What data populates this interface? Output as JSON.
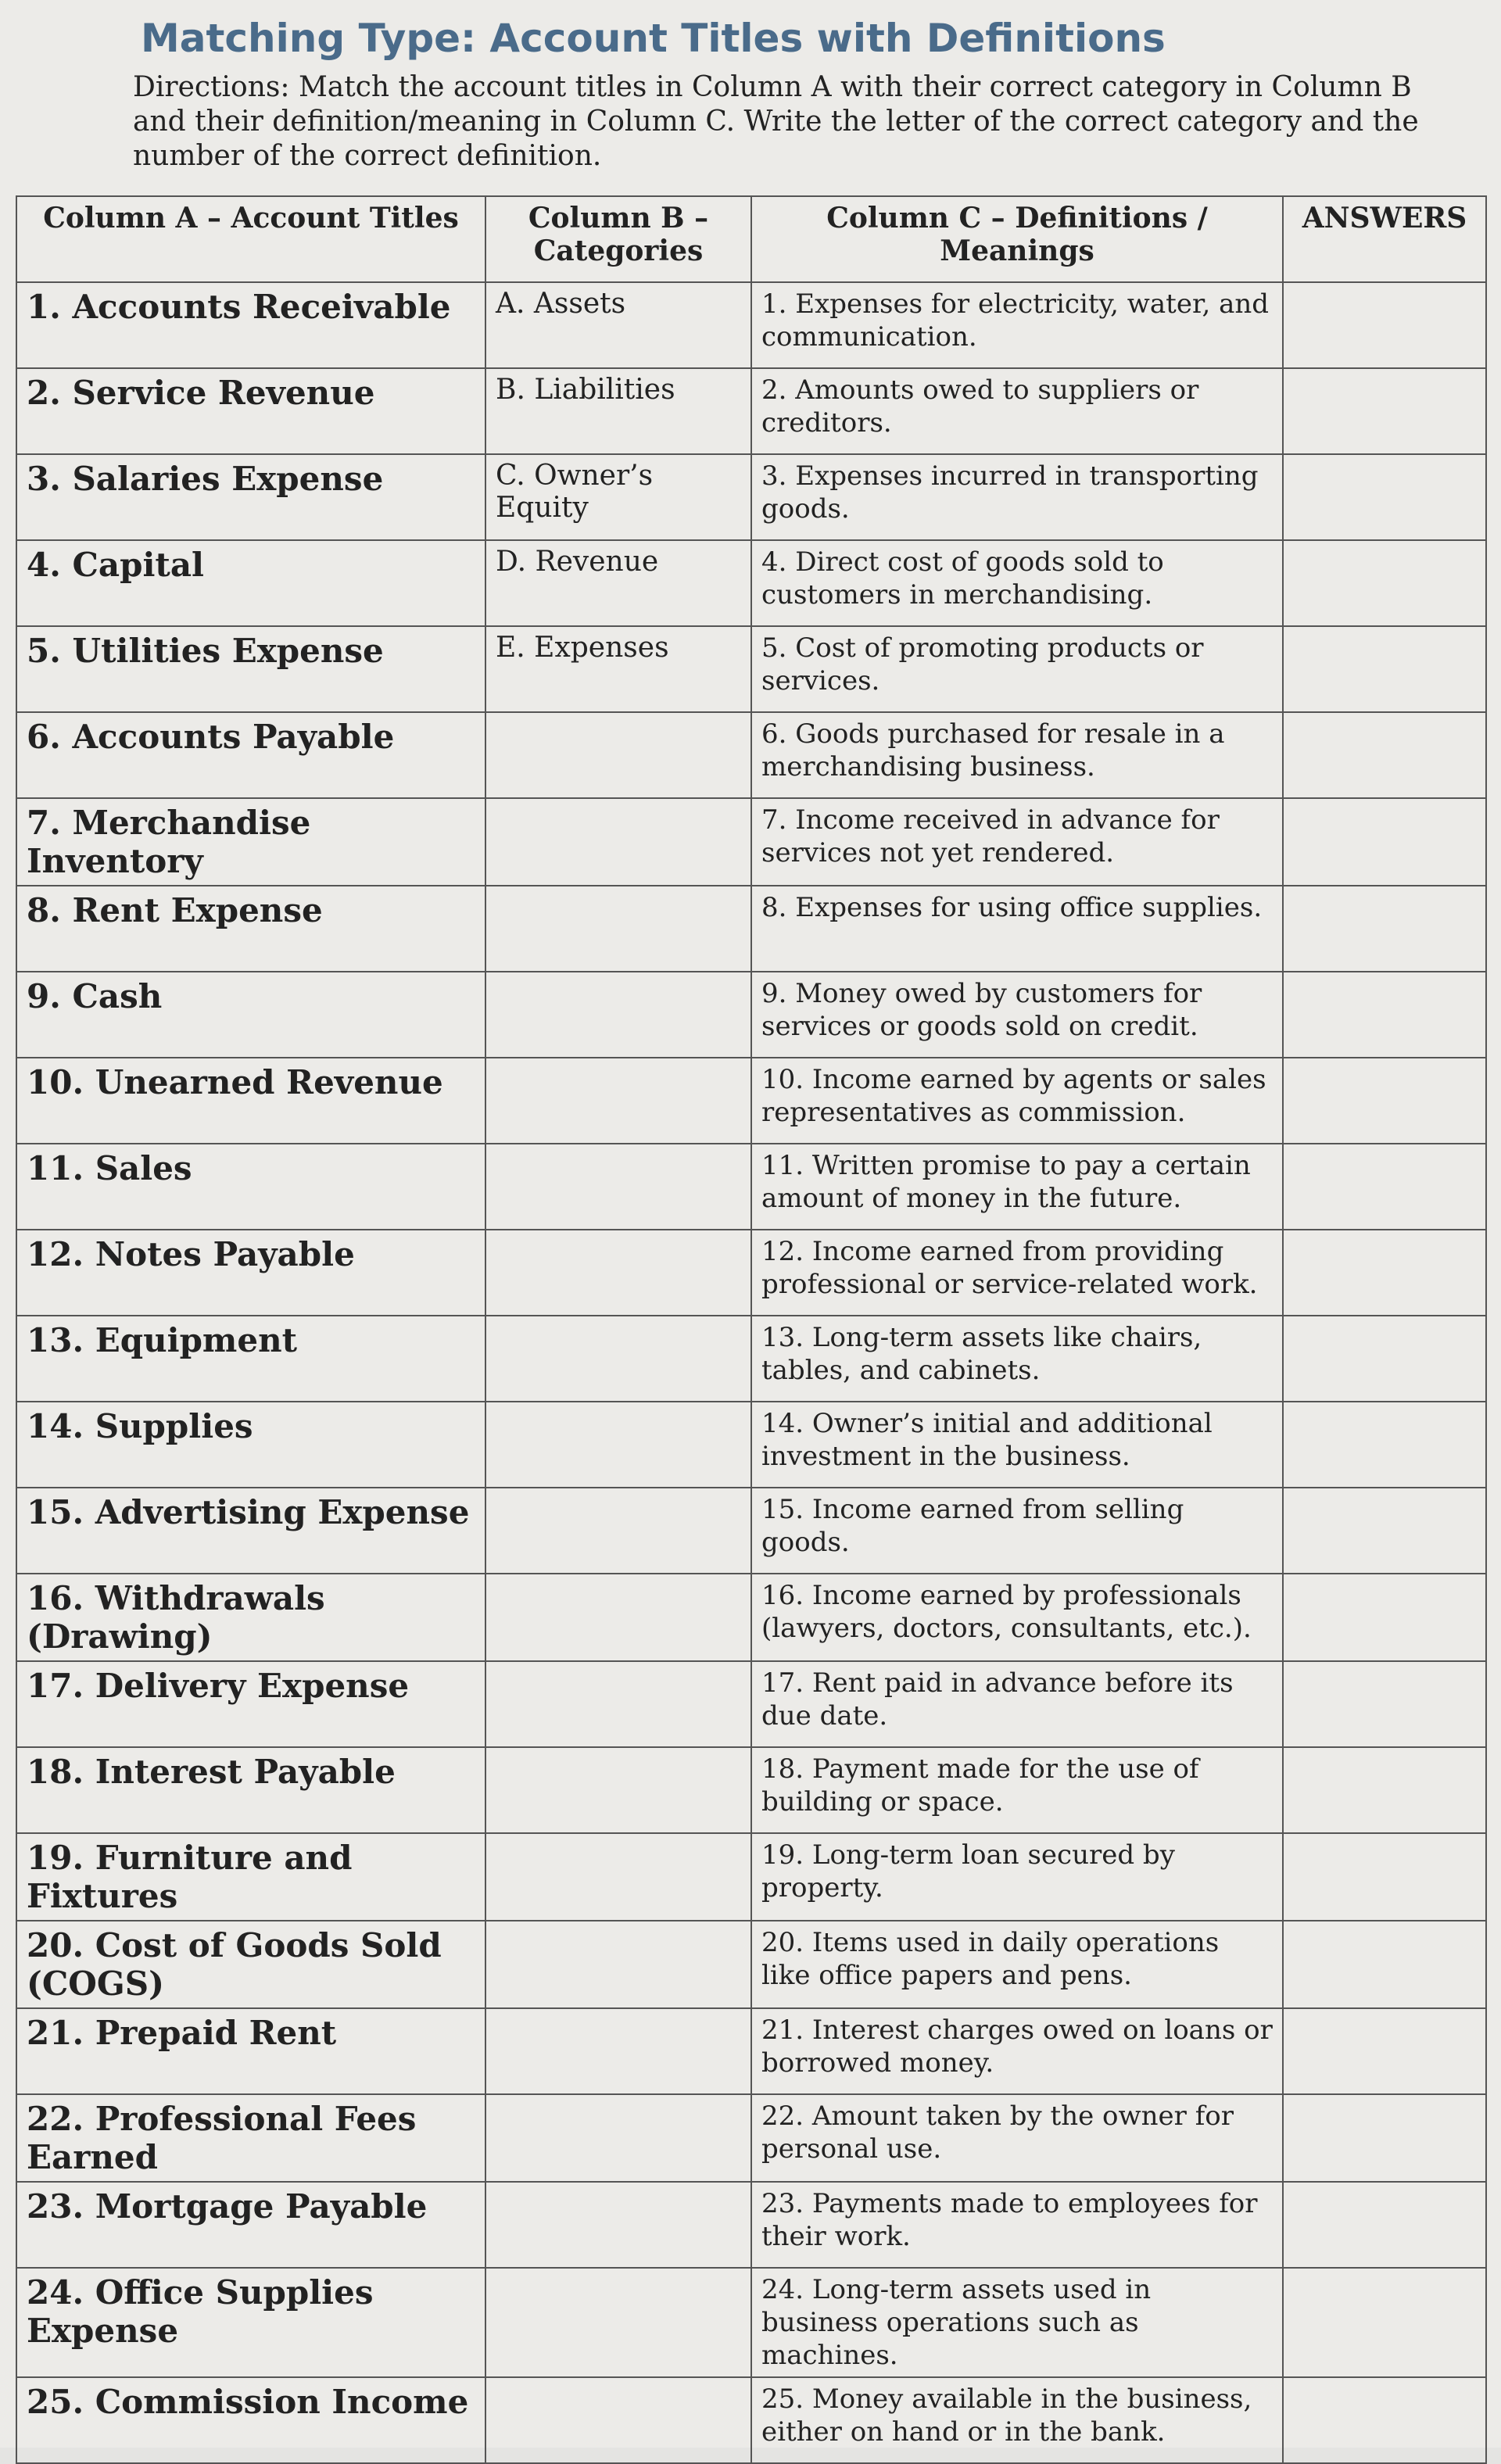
{
  "header": {
    "title": "Matching Type: Account Titles with Definitions",
    "directions": "Directions: Match the account titles in Column A with their correct category in Column B and their definition/meaning in Column C. Write the letter of the correct category and the number of the correct definition."
  },
  "table": {
    "columns": [
      "Column A – Account Titles",
      "Column B – Categories",
      "Column C – Definitions / Meanings",
      "ANSWERS"
    ],
    "column_a": [
      "1. Accounts Receivable",
      "2. Service Revenue",
      "3. Salaries Expense",
      "4. Capital",
      "5. Utilities Expense",
      "6. Accounts Payable",
      "7. Merchandise Inventory",
      "8. Rent Expense",
      "9. Cash",
      "10. Unearned Revenue",
      "11. Sales",
      "12. Notes Payable",
      "13. Equipment",
      "14. Supplies",
      "15. Advertising Expense",
      "16. Withdrawals (Drawing)",
      "17. Delivery Expense",
      "18. Interest Payable",
      "19. Furniture and Fixtures",
      "20. Cost of Goods Sold (COGS)",
      "21. Prepaid Rent",
      "22. Professional Fees Earned",
      "23. Mortgage Payable",
      "24. Office Supplies Expense",
      "25. Commission Income"
    ],
    "column_b": [
      "A. Assets",
      "B. Liabilities",
      "C. Owner’s Equity",
      "D. Revenue",
      "E. Expenses"
    ],
    "column_c": [
      "1. Expenses for electricity, water, and communication.",
      "2. Amounts owed to suppliers or creditors.",
      "3. Expenses incurred in transporting goods.",
      "4. Direct cost of goods sold to customers in merchandising.",
      "5. Cost of promoting products or services.",
      "6. Goods purchased for resale in a merchandising business.",
      "7. Income received in advance for services not yet rendered.",
      "8. Expenses for using office supplies.",
      "9. Money owed by customers for services or goods sold on credit.",
      "10. Income earned by agents or sales representatives as commission.",
      "11. Written promise to pay a certain amount of money in the future.",
      "12. Income earned from providing professional or service-related work.",
      "13. Long-term assets like chairs, tables, and cabinets.",
      "14. Owner’s initial and additional investment in the business.",
      "15. Income earned from selling goods.",
      "16. Income earned by professionals (lawyers, doctors, consultants, etc.).",
      "17. Rent paid in advance before its due date.",
      "18. Payment made for the use of building or space.",
      "19. Long-term loan secured by property.",
      "20. Items used in daily operations like office papers and pens.",
      "21. Interest charges owed on loans or borrowed money.",
      "22. Amount taken by the owner for personal use.",
      "23. Payments made to employees for their work.",
      "24. Long-term assets used in business operations such as machines.",
      "25. Money available in the business, either on hand or in the bank."
    ]
  }
}
